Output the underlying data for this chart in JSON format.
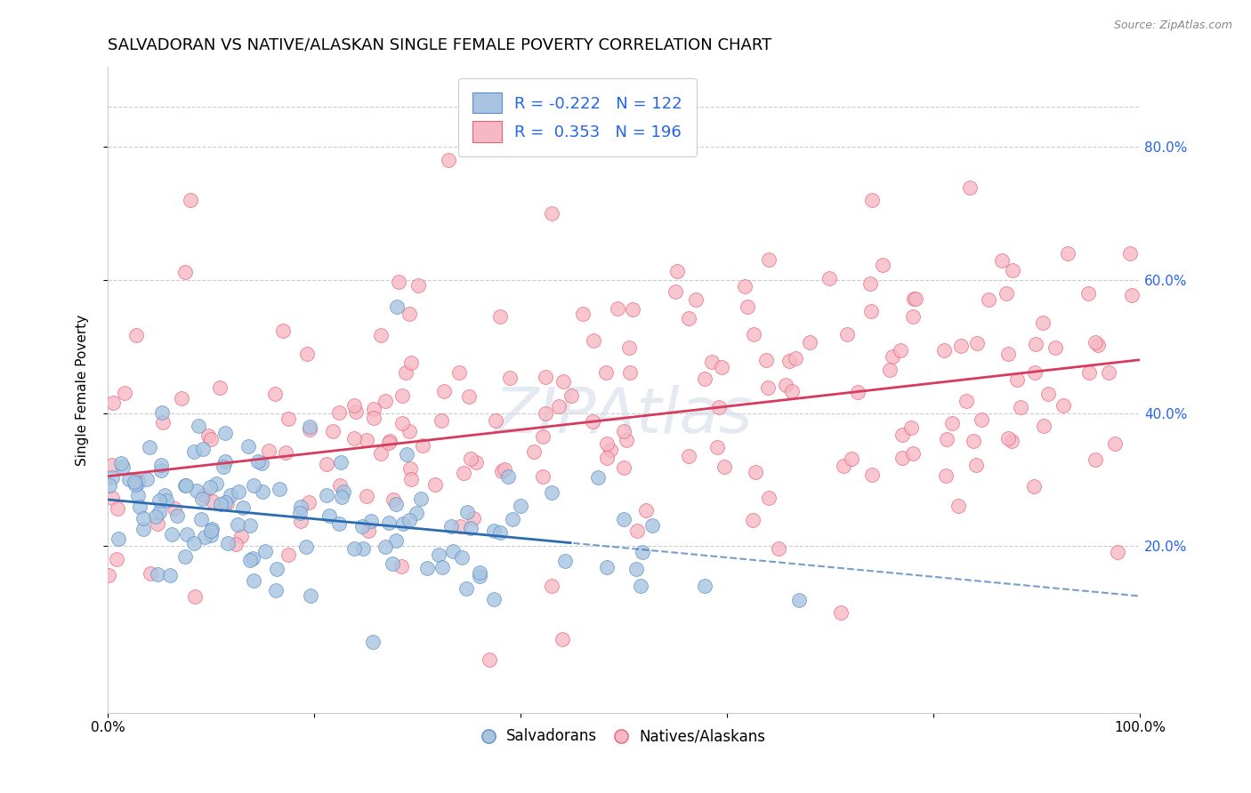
{
  "title": "SALVADORAN VS NATIVE/ALASKAN SINGLE FEMALE POVERTY CORRELATION CHART",
  "source": "Source: ZipAtlas.com",
  "ylabel": "Single Female Poverty",
  "legend_labels": [
    "Salvadorans",
    "Natives/Alaskans"
  ],
  "legend_r_blue": "R = -0.222",
  "legend_n_blue": "N = 122",
  "legend_r_pink": "R =  0.353",
  "legend_n_pink": "N = 196",
  "blue_scatter_color": "#a8c4e0",
  "blue_scatter_edge": "#5b8fc9",
  "pink_scatter_color": "#f5b8c4",
  "pink_scatter_edge": "#e8637a",
  "blue_line_color": "#2b6cb0",
  "pink_line_color": "#d63b5e",
  "text_color_value": "#2563eb",
  "title_fontsize": 13,
  "axis_label_fontsize": 11,
  "tick_label_fontsize": 11,
  "ytick_labels": [
    "20.0%",
    "40.0%",
    "60.0%",
    "80.0%"
  ],
  "ytick_values": [
    0.2,
    0.4,
    0.6,
    0.8
  ],
  "watermark": "ZIPAtlas",
  "blue_R": -0.222,
  "blue_N": 122,
  "pink_R": 0.353,
  "pink_N": 196,
  "blue_intercept": 0.27,
  "blue_slope": -0.145,
  "pink_intercept": 0.305,
  "pink_slope": 0.175,
  "xlim": [
    0.0,
    1.0
  ],
  "ylim": [
    -0.05,
    0.92
  ]
}
